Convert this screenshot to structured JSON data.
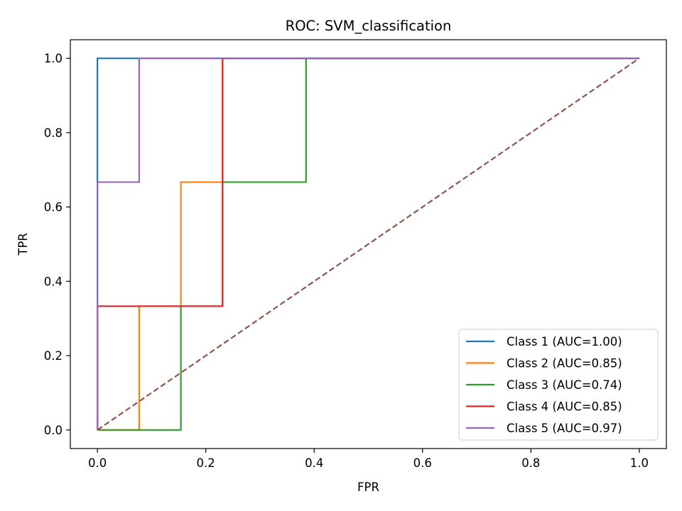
{
  "chart_data": {
    "type": "line",
    "title": "ROC: SVM_classification",
    "xlabel": "FPR",
    "ylabel": "TPR",
    "xlim": [
      -0.05,
      1.05
    ],
    "ylim": [
      -0.05,
      1.05
    ],
    "xticks": [
      0.0,
      0.2,
      0.4,
      0.6,
      0.8,
      1.0
    ],
    "yticks": [
      0.0,
      0.2,
      0.4,
      0.6,
      0.8,
      1.0
    ],
    "xtick_labels": [
      "0.0",
      "0.2",
      "0.4",
      "0.6",
      "0.8",
      "1.0"
    ],
    "ytick_labels": [
      "0.0",
      "0.2",
      "0.4",
      "0.6",
      "0.8",
      "1.0"
    ],
    "grid": false,
    "legend_position": "lower-right",
    "series": [
      {
        "name": "Class 1 (AUC=1.00)",
        "color": "#1f77b4",
        "x": [
          0,
          0,
          0,
          0.077,
          1
        ],
        "y": [
          0,
          0.667,
          1,
          1,
          1
        ]
      },
      {
        "name": "Class 2 (AUC=0.85)",
        "color": "#ff7f0e",
        "x": [
          0,
          0.077,
          0.077,
          0.154,
          0.154,
          0.231,
          0.231,
          1
        ],
        "y": [
          0,
          0,
          0.333,
          0.333,
          0.667,
          0.667,
          1,
          1
        ]
      },
      {
        "name": "Class 3 (AUC=0.74)",
        "color": "#2ca02c",
        "x": [
          0,
          0.154,
          0.154,
          0.231,
          0.231,
          0.385,
          0.385,
          1
        ],
        "y": [
          0,
          0,
          0.333,
          0.333,
          0.667,
          0.667,
          1,
          1
        ]
      },
      {
        "name": "Class 4 (AUC=0.85)",
        "color": "#d62728",
        "x": [
          0,
          0,
          0.231,
          0.231,
          1
        ],
        "y": [
          0,
          0.333,
          0.333,
          1,
          1
        ]
      },
      {
        "name": "Class 5 (AUC=0.97)",
        "color": "#9467bd",
        "x": [
          0,
          0,
          0.077,
          0.077,
          1
        ],
        "y": [
          0,
          0.667,
          0.667,
          1,
          1
        ]
      }
    ],
    "reference_line": {
      "color": "#8c564b",
      "style": "dashed",
      "x": [
        0,
        1
      ],
      "y": [
        0,
        1
      ]
    }
  }
}
